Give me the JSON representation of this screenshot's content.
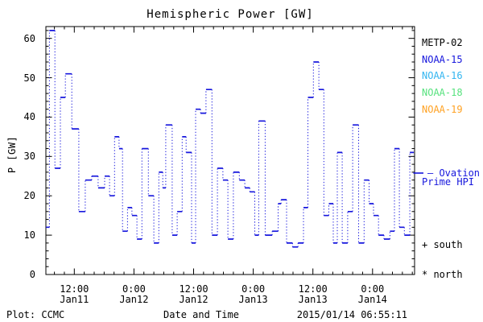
{
  "title": "Hemispheric Power [GW]",
  "axes": {
    "y_label": "P [GW]",
    "x_label": "Date and Time",
    "y_ticks": [
      0,
      10,
      20,
      30,
      40,
      50,
      60
    ],
    "y_minor_step_gw": 2,
    "x_minor_step_hours": 2
  },
  "legend": {
    "satellites": [
      {
        "label": "METP-02",
        "color": "#000000"
      },
      {
        "label": "NOAA-15",
        "color": "#1717dd"
      },
      {
        "label": "NOAA-16",
        "color": "#33b5f0"
      },
      {
        "label": "NOAA-18",
        "color": "#57e27e"
      },
      {
        "label": "NOAA-19",
        "color": "#ffa224"
      }
    ],
    "ovation_line1": "— Ovation",
    "ovation_line2": "Prime HPI",
    "south_marker": "+ south",
    "north_marker": "* north"
  },
  "footer": {
    "credit": "Plot: CCMC",
    "timestamp": "2015/01/14 06:55:11"
  },
  "colors": {
    "frame": "#000000",
    "background": "#ffffff",
    "hpi_line": "#1717dd"
  },
  "chart_data": {
    "type": "line",
    "subtype": "step",
    "title": "Hemispheric Power [GW]",
    "xlabel": "Date and Time",
    "ylabel": "P [GW]",
    "ylim": [
      0,
      63
    ],
    "grid": false,
    "x_unit": "hours since 2015-01-11 00:00",
    "x_range_hours": [
      6.3,
      80.3
    ],
    "x_ticks": [
      {
        "hour": 12,
        "time": "12:00",
        "date": "Jan11"
      },
      {
        "hour": 24,
        "time": "0:00",
        "date": "Jan12"
      },
      {
        "hour": 36,
        "time": "12:00",
        "date": "Jan12"
      },
      {
        "hour": 48,
        "time": "0:00",
        "date": "Jan13"
      },
      {
        "hour": 60,
        "time": "12:00",
        "date": "Jan13"
      },
      {
        "hour": 72,
        "time": "0:00",
        "date": "Jan14"
      }
    ],
    "series": [
      {
        "name": "Ovation Prime HPI",
        "color": "#1717dd",
        "line_style": "solid steps with dotted risers",
        "steps_hour_gw": [
          [
            6.3,
            12
          ],
          [
            7.0,
            62
          ],
          [
            8.1,
            27
          ],
          [
            9.2,
            45
          ],
          [
            10.2,
            51
          ],
          [
            11.5,
            37
          ],
          [
            12.9,
            16
          ],
          [
            14.2,
            24
          ],
          [
            15.5,
            25
          ],
          [
            16.8,
            22
          ],
          [
            18.1,
            25
          ],
          [
            19.1,
            20
          ],
          [
            20.1,
            35
          ],
          [
            21.0,
            32
          ],
          [
            21.7,
            11
          ],
          [
            22.7,
            17
          ],
          [
            23.6,
            15
          ],
          [
            24.6,
            9
          ],
          [
            25.6,
            32
          ],
          [
            26.9,
            20
          ],
          [
            28.0,
            8
          ],
          [
            29.0,
            26
          ],
          [
            29.8,
            22
          ],
          [
            30.4,
            38
          ],
          [
            31.7,
            10
          ],
          [
            32.7,
            16
          ],
          [
            33.7,
            35
          ],
          [
            34.5,
            31
          ],
          [
            35.6,
            8
          ],
          [
            36.4,
            42
          ],
          [
            37.4,
            41
          ],
          [
            38.5,
            47
          ],
          [
            39.7,
            10
          ],
          [
            40.8,
            27
          ],
          [
            41.9,
            24
          ],
          [
            42.9,
            9
          ],
          [
            44.0,
            26
          ],
          [
            45.2,
            24
          ],
          [
            46.3,
            22
          ],
          [
            47.3,
            21
          ],
          [
            48.3,
            10
          ],
          [
            49.1,
            39
          ],
          [
            50.4,
            10
          ],
          [
            51.8,
            11
          ],
          [
            53.0,
            18
          ],
          [
            53.6,
            19
          ],
          [
            54.7,
            8
          ],
          [
            55.9,
            7
          ],
          [
            57.0,
            8
          ],
          [
            58.1,
            17
          ],
          [
            59.0,
            45
          ],
          [
            60.1,
            54
          ],
          [
            61.2,
            47
          ],
          [
            62.2,
            15
          ],
          [
            63.2,
            18
          ],
          [
            64.1,
            8
          ],
          [
            64.9,
            31
          ],
          [
            65.9,
            8
          ],
          [
            67.0,
            16
          ],
          [
            68.0,
            38
          ],
          [
            69.2,
            8
          ],
          [
            70.3,
            24
          ],
          [
            71.3,
            18
          ],
          [
            72.2,
            15
          ],
          [
            73.2,
            10
          ],
          [
            74.3,
            9
          ],
          [
            75.5,
            11
          ],
          [
            76.4,
            32
          ],
          [
            77.4,
            12
          ],
          [
            78.4,
            10
          ],
          [
            79.5,
            31
          ]
        ]
      }
    ]
  }
}
